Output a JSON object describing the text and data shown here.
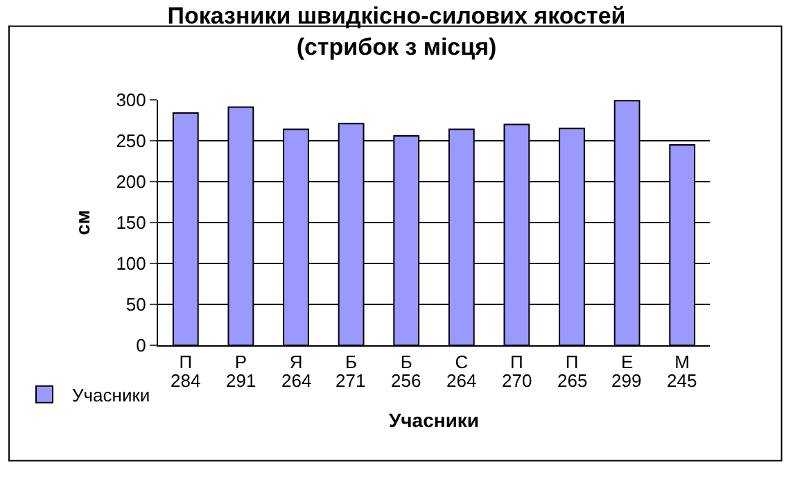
{
  "chart_data": {
    "type": "bar",
    "title": "Показники швидкісно-силових якостей\n(стрибок з місця)",
    "xlabel": "Учасники",
    "ylabel": "см",
    "categories": [
      "П",
      "Р",
      "Я",
      "Б",
      "Б",
      "С",
      "П",
      "П",
      "Е",
      "М"
    ],
    "series": [
      {
        "name": "Учасники",
        "color": "#9999ff",
        "values": [
          284,
          291,
          264,
          271,
          256,
          264,
          270,
          265,
          299,
          245
        ]
      }
    ],
    "ylim": [
      0,
      300
    ],
    "yticks": [
      0,
      50,
      100,
      150,
      200,
      250,
      300
    ],
    "grid": "y",
    "legend": "bottom left",
    "data_labels": true
  }
}
